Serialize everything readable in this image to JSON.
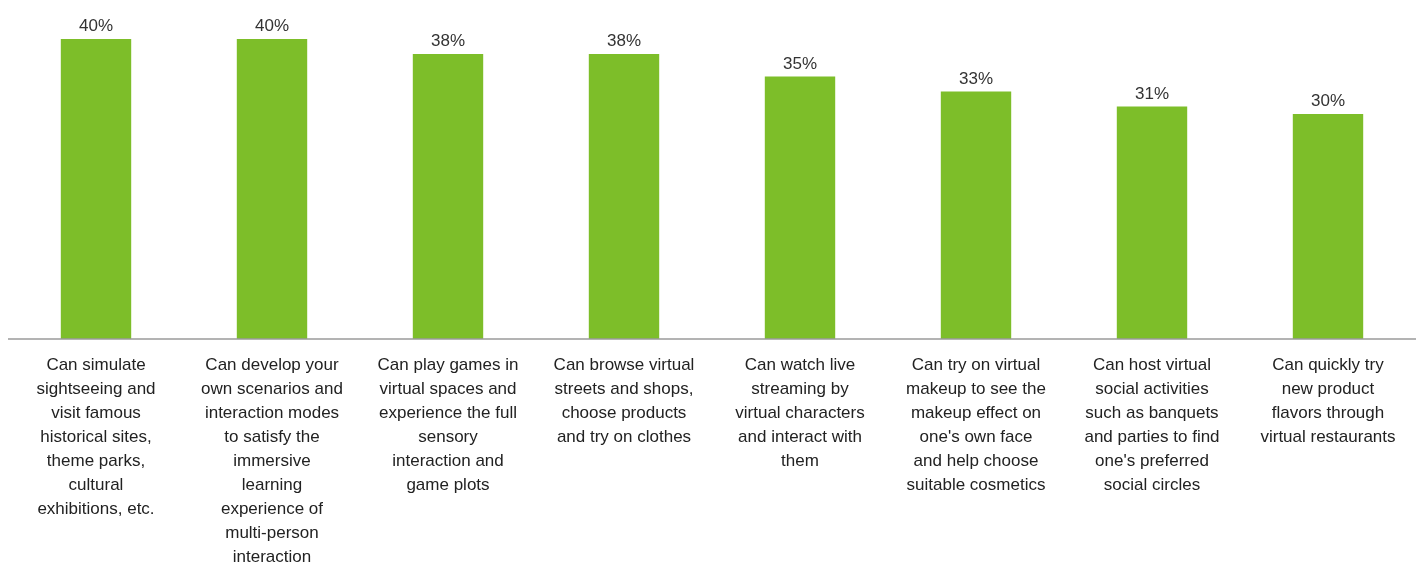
{
  "chart_data": {
    "type": "bar",
    "categories": [
      "Can simulate sightseeing and visit famous historical sites, theme parks, cultural exhibitions, etc.",
      "Can develop your own scenarios and interaction modes to satisfy the immersive learning experience of multi-person interaction",
      "Can play games in virtual spaces and experience the full sensory interaction and game plots",
      "Can browse virtual streets and shops, choose products and try on clothes",
      "Can watch live streaming by virtual characters and interact with them",
      "Can try on virtual makeup to see the makeup effect on one's own face and help choose suitable cosmetics",
      "Can host virtual social activities such as banquets and parties to find one's preferred social circles",
      "Can quickly try new product flavors through virtual restaurants"
    ],
    "values": [
      40,
      40,
      38,
      38,
      35,
      33,
      31,
      30
    ],
    "value_labels": [
      "40%",
      "40%",
      "38%",
      "38%",
      "35%",
      "33%",
      "31%",
      "30%"
    ],
    "color": "#7dbe29"
  }
}
